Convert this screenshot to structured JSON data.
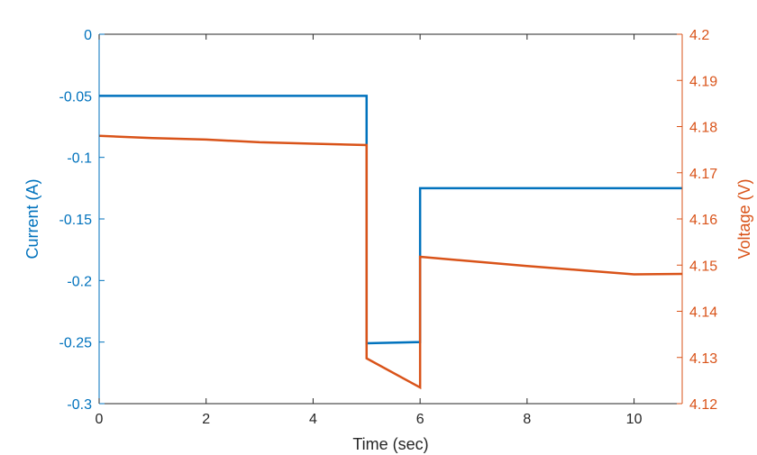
{
  "chart_data": {
    "type": "line",
    "xlabel": "Time (sec)",
    "ylabel_left": "Current (A)",
    "ylabel_right": "Voltage (V)",
    "xlim": [
      0,
      10.9
    ],
    "ylim_left": [
      -0.3,
      0
    ],
    "ylim_right": [
      4.12,
      4.2
    ],
    "x_ticks": [
      0,
      2,
      4,
      6,
      8,
      10
    ],
    "x_tick_labels": [
      "0",
      "2",
      "4",
      "6",
      "8",
      "10"
    ],
    "y_left_ticks": [
      0,
      -0.05,
      -0.1,
      -0.15,
      -0.2,
      -0.25,
      -0.3
    ],
    "y_left_tick_labels": [
      "0",
      "-0.05",
      "-0.1",
      "-0.15",
      "-0.2",
      "-0.25",
      "-0.3"
    ],
    "y_right_ticks": [
      4.2,
      4.19,
      4.18,
      4.17,
      4.16,
      4.15,
      4.14,
      4.13,
      4.12
    ],
    "y_right_tick_labels": [
      "4.2",
      "4.19",
      "4.18",
      "4.17",
      "4.16",
      "4.15",
      "4.14",
      "4.13",
      "4.12"
    ],
    "grid": false,
    "series": [
      {
        "axis": "left",
        "color": "#0072BD",
        "x": [
          0,
          5,
          5,
          6,
          6,
          10.9
        ],
        "y": [
          -0.05,
          -0.05,
          -0.251,
          -0.25,
          -0.125,
          -0.125
        ]
      },
      {
        "axis": "right",
        "color": "#D95319",
        "x": [
          0,
          1,
          2,
          3,
          4,
          5,
          5,
          6,
          6,
          7,
          8,
          9,
          10,
          10.9
        ],
        "y": [
          4.178,
          4.1775,
          4.1772,
          4.1766,
          4.1763,
          4.176,
          4.1298,
          4.1235,
          4.1518,
          4.1508,
          4.1498,
          4.1489,
          4.148,
          4.1481
        ]
      }
    ],
    "colors": {
      "left_axis": "#0072BD",
      "right_axis": "#D95319",
      "bottom_axis": "#262626"
    }
  }
}
